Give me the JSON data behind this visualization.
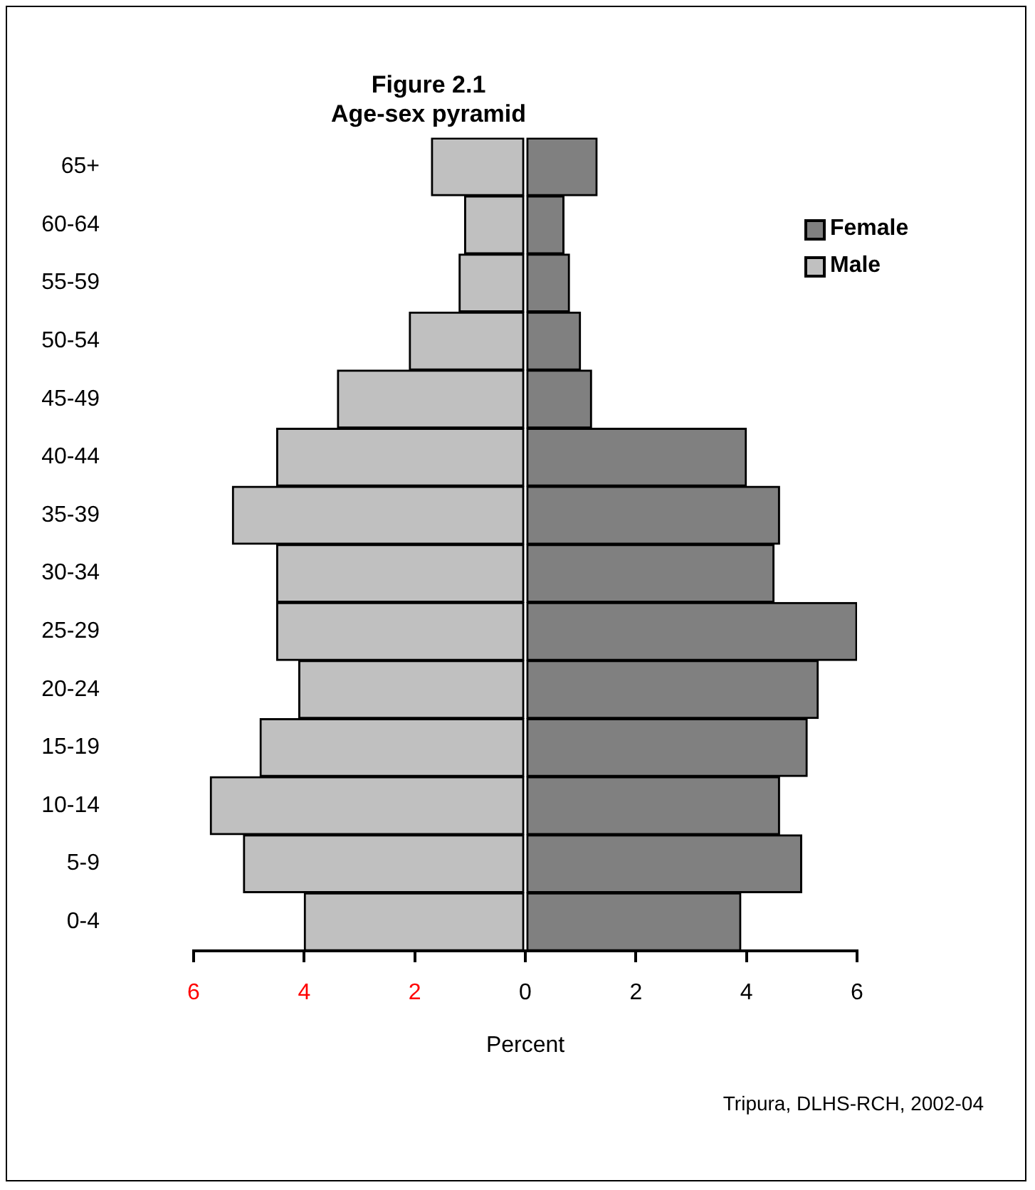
{
  "chart_data": {
    "type": "bar",
    "orientation": "horizontal",
    "stacked": true,
    "title": "Figure 2.1",
    "subtitle": "Age-sex pyramid",
    "xlabel": "Percent",
    "categories": [
      "65+",
      "60-64",
      "55-59",
      "50-54",
      "45-49",
      "40-44",
      "35-39",
      "30-34",
      "25-29",
      "20-24",
      "15-19",
      "10-14",
      "5-9",
      "0-4"
    ],
    "series": [
      {
        "name": "Female",
        "color": "#808080",
        "values": [
          1.3,
          0.7,
          0.8,
          1.0,
          1.2,
          4.0,
          4.6,
          4.5,
          6.0,
          5.3,
          5.1,
          4.6,
          5.0,
          3.9
        ]
      },
      {
        "name": "Male",
        "color": "#c0c0c0",
        "values": [
          -1.7,
          -1.1,
          -1.2,
          -2.1,
          -3.4,
          -4.5,
          -5.3,
          -4.5,
          -4.5,
          -4.1,
          -4.8,
          -5.7,
          -5.1,
          -4.0
        ]
      }
    ],
    "xlim": [
      -6,
      6
    ],
    "xticks": [
      {
        "value": -6,
        "label": "6"
      },
      {
        "value": -4,
        "label": "4"
      },
      {
        "value": -2,
        "label": "2"
      },
      0,
      2,
      4,
      6
    ],
    "legend": "top right",
    "grid": false,
    "annotations": [
      "Tripura, DLHS-RCH, 2002-04"
    ]
  }
}
